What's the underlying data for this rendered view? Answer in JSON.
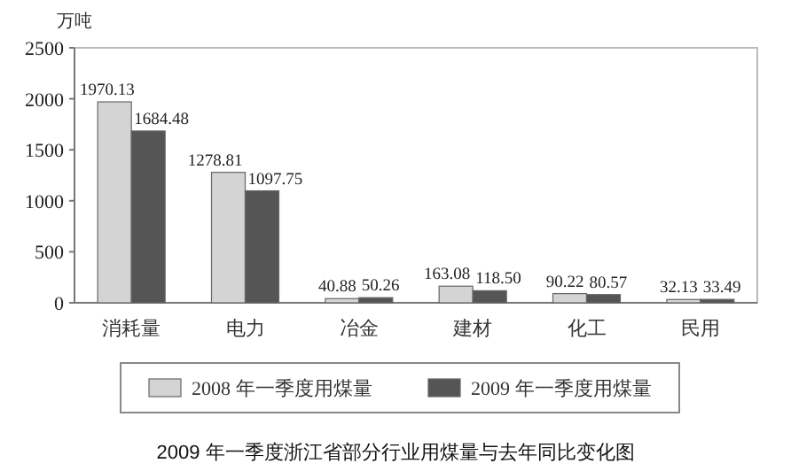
{
  "chart_data": {
    "type": "bar",
    "title": "2009 年一季度浙江省部分行业用煤量与去年同比变化图",
    "ylabel": "万吨",
    "categories": [
      "消耗量",
      "电力",
      "冶金",
      "建材",
      "化工",
      "民用"
    ],
    "series": [
      {
        "name": "2008 年一季度用煤量",
        "color": "#d4d4d4",
        "values": [
          1970.13,
          1278.81,
          40.88,
          163.08,
          90.22,
          32.13
        ],
        "value_labels": [
          "1970.13",
          "1278.81",
          "40.88",
          "163.08",
          "90.22",
          "32.13"
        ]
      },
      {
        "name": "2009 年一季度用煤量",
        "color": "#555555",
        "values": [
          1684.48,
          1097.75,
          50.26,
          118.5,
          80.57,
          33.49
        ],
        "value_labels": [
          "1684.48",
          "1097.75",
          "50.26",
          "118.50",
          "80.57",
          "33.49"
        ]
      }
    ],
    "ylim": [
      0,
      2500
    ],
    "yticks": [
      0,
      500,
      1000,
      1500,
      2000,
      2500
    ],
    "grid": false,
    "legend": "bottom"
  }
}
